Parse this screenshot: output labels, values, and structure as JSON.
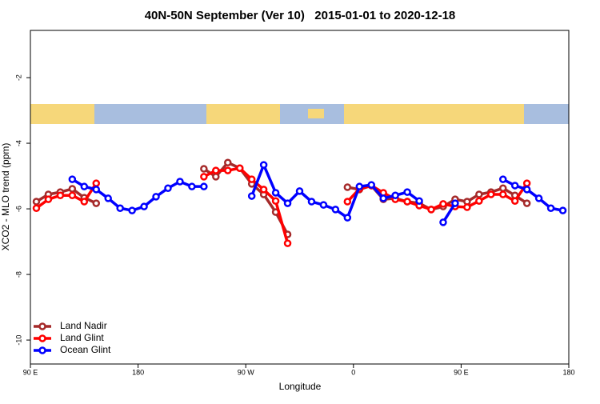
{
  "chart_data": {
    "type": "line",
    "title": "40N-50N September (Ver 10)   2015-01-01 to 2020-12-18",
    "x_label": "Longitude",
    "y_label": "XCO2 - MLO trend (ppm)",
    "xlim": [
      90,
      540
    ],
    "ylim": [
      -10.73,
      -0.56
    ],
    "xticks": [
      {
        "value": 90,
        "label": "90 E"
      },
      180,
      {
        "value": 270,
        "label": "90 W"
      },
      {
        "value": 360,
        "label": "0"
      },
      {
        "value": 450,
        "label": "90 E"
      },
      {
        "value": 540,
        "label": "180"
      }
    ],
    "yticks": [
      -2,
      -4,
      -6,
      -8,
      -10
    ],
    "grid": false,
    "legend": "bottom-left",
    "x": [
      95,
      105,
      115,
      125,
      135,
      145,
      155,
      165,
      175,
      185,
      195,
      205,
      215,
      225,
      235,
      245,
      255,
      265,
      275,
      285,
      295,
      305,
      315,
      325,
      335,
      345,
      355,
      365,
      375,
      385,
      395,
      405,
      415,
      425,
      435,
      445,
      455,
      465,
      475,
      485,
      495,
      505,
      515,
      525,
      535
    ],
    "series": [
      {
        "name": "Land Nadir",
        "color": "#a52a2a",
        "values": [
          -5.78,
          -5.56,
          -5.49,
          -5.39,
          -5.66,
          -5.83,
          null,
          null,
          null,
          null,
          null,
          null,
          null,
          null,
          -4.78,
          -5.02,
          -4.59,
          -4.76,
          -5.24,
          -5.56,
          -6.1,
          -6.78,
          null,
          null,
          null,
          null,
          -5.34,
          -5.41,
          -5.29,
          -5.71,
          -5.68,
          -5.78,
          -5.83,
          -6.02,
          -5.93,
          -5.71,
          -5.78,
          -5.56,
          -5.49,
          -5.37,
          -5.59,
          -5.83,
          null,
          null,
          null
        ]
      },
      {
        "name": "Land Glint",
        "color": "#ff0000",
        "values": [
          -5.98,
          -5.71,
          -5.59,
          -5.59,
          -5.78,
          -5.22,
          null,
          null,
          null,
          null,
          null,
          null,
          null,
          null,
          -5.02,
          -4.83,
          -4.83,
          -4.76,
          -5.1,
          -5.41,
          -5.76,
          -7.05,
          null,
          null,
          null,
          null,
          -5.78,
          -5.39,
          -5.29,
          -5.51,
          -5.71,
          -5.78,
          -5.9,
          -6.02,
          -5.85,
          -5.93,
          -5.95,
          -5.76,
          -5.56,
          -5.56,
          -5.76,
          -5.22,
          null,
          null,
          null
        ]
      },
      {
        "name": "Ocean Glint",
        "color": "#0000ff",
        "values": [
          null,
          null,
          null,
          -5.1,
          -5.32,
          -5.41,
          -5.68,
          -5.98,
          -6.05,
          -5.93,
          -5.63,
          -5.37,
          -5.17,
          -5.32,
          -5.32,
          null,
          null,
          null,
          -5.61,
          -4.66,
          -5.51,
          -5.83,
          -5.46,
          -5.78,
          -5.88,
          -6.02,
          -6.27,
          -5.32,
          -5.27,
          -5.68,
          -5.59,
          -5.49,
          -5.76,
          null,
          -6.41,
          -5.83,
          null,
          null,
          null,
          -5.1,
          -5.29,
          -5.41,
          -5.68,
          -5.98,
          -6.05
        ]
      }
    ]
  }
}
